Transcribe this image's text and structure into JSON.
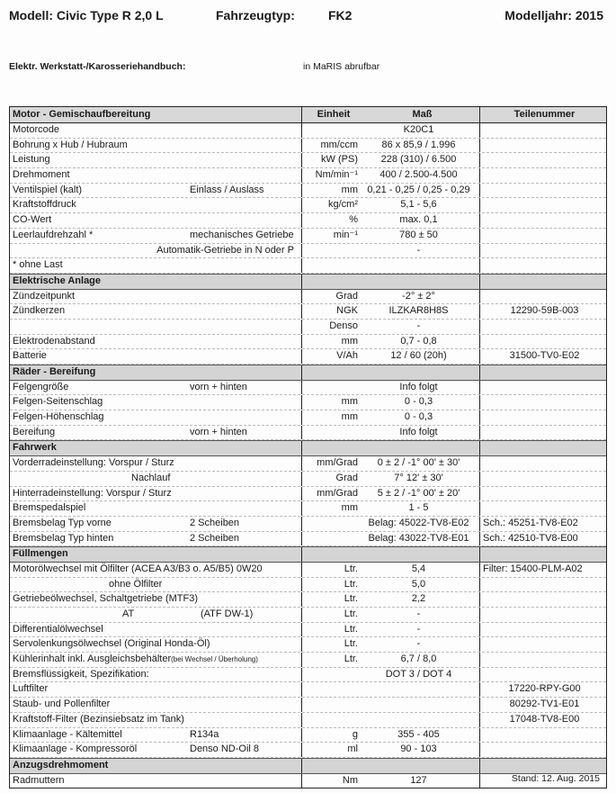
{
  "header": {
    "model": "Modell:  Civic Type R  2,0 L",
    "type_label": "Fahrzeugtyp:",
    "type_value": "FK2",
    "model_year": "Modelljahr: 2015"
  },
  "manual": {
    "label": "Elektr. Werkstatt-/Karosseriehandbuch:",
    "value": "in MaRIS abrufbar"
  },
  "table": {
    "columns": [
      "Motor - Gemischaufbereitung",
      "Einheit",
      "Maß",
      "Teilenummer"
    ],
    "sections": [
      {
        "title": "",
        "rows": [
          {
            "label": "Motorcode",
            "sub": "",
            "unit": "",
            "value": "K20C1",
            "part": ""
          },
          {
            "label": "Bohrung x Hub / Hubraum",
            "sub": "",
            "unit": "mm/ccm",
            "value": "86 x 85,9 / 1.996",
            "part": ""
          },
          {
            "label": "Leistung",
            "sub": "",
            "unit": "kW (PS)",
            "value": "228 (310) / 6.500",
            "part": ""
          },
          {
            "label": "Drehmoment",
            "sub": "",
            "unit": "Nm/min⁻¹",
            "value": "400 / 2.500-4.500",
            "part": ""
          },
          {
            "label": "Ventilspiel (kalt)",
            "sub": "Einlass / Auslass",
            "unit": "mm",
            "value": "0,21 - 0,25 / 0,25 - 0,29",
            "part": ""
          },
          {
            "label": "Kraftstoffdruck",
            "sub": "",
            "unit": "kg/cm²",
            "value": "5,1 - 5,6",
            "part": ""
          },
          {
            "label": "CO-Wert",
            "sub": "",
            "unit": "%",
            "value": "max. 0,1",
            "part": ""
          },
          {
            "label": "Leerlaufdrehzahl *",
            "sub": "mechanisches Getriebe",
            "unit": "min⁻¹",
            "value": "780 ± 50",
            "part": ""
          },
          {
            "label": "",
            "sub": "Automatik-Getriebe in N oder P",
            "unit": "",
            "value": "-",
            "part": ""
          },
          {
            "label": "* ohne Last",
            "sub": "",
            "unit": "",
            "value": "",
            "part": ""
          }
        ]
      },
      {
        "title": "Elektrische Anlage",
        "rows": [
          {
            "label": "Zündzeitpunkt",
            "sub": "",
            "unit": "Grad",
            "value": "-2° ± 2°",
            "part": ""
          },
          {
            "label": "Zündkerzen",
            "sub": "",
            "unit": "NGK",
            "value": "ILZKAR8H8S",
            "part": "12290-59B-003"
          },
          {
            "label": "",
            "sub": "",
            "unit": "Denso",
            "value": "-",
            "part": ""
          },
          {
            "label": "Elektrodenabstand",
            "sub": "",
            "unit": "mm",
            "value": "0,7 - 0,8",
            "part": ""
          },
          {
            "label": "Batterie",
            "sub": "",
            "unit": "V/Ah",
            "value": "12 / 60 (20h)",
            "part": "31500-TV0-E02"
          }
        ]
      },
      {
        "title": "Räder - Bereifung",
        "rows": [
          {
            "label": "Felgengröße",
            "sub": "vorn + hinten",
            "unit": "",
            "value": "Info folgt",
            "part": ""
          },
          {
            "label": "Felgen-Seitenschlag",
            "sub": "",
            "unit": "mm",
            "value": "0 - 0,3",
            "part": ""
          },
          {
            "label": "Felgen-Höhenschlag",
            "sub": "",
            "unit": "mm",
            "value": "0 - 0,3",
            "part": ""
          },
          {
            "label": "Bereifung",
            "sub": "vorn + hinten",
            "unit": "",
            "value": "Info folgt",
            "part": ""
          }
        ]
      },
      {
        "title": "Fahrwerk",
        "rows": [
          {
            "label": "Vorderradeinstellung: Vorspur / Sturz",
            "sub": "",
            "unit": "mm/Grad",
            "value": "0 ± 2 / -1° 00' ± 30'",
            "part": ""
          },
          {
            "label": "",
            "sub": "Nachlauf",
            "unit": "Grad",
            "value": "7° 12' ± 30'",
            "part": ""
          },
          {
            "label": "Hinterradeinstellung:  Vorspur / Sturz",
            "sub": "",
            "unit": "mm/Grad",
            "value": "5 ± 2 / -1° 00' ± 20'",
            "part": ""
          },
          {
            "label": "Bremspedalspiel",
            "sub": "",
            "unit": "mm",
            "value": "1 - 5",
            "part": ""
          },
          {
            "label": "Bremsbelag Typ vorne",
            "sub": "2 Scheiben",
            "unit": "",
            "value": "Belag: 45022-TV8-E02",
            "part": "Sch.: 45251-TV8-E02"
          },
          {
            "label": "Bremsbelag Typ hinten",
            "sub": "2 Scheiben",
            "unit": "",
            "value": "Belag: 43022-TV8-E01",
            "part": "Sch.: 42510-TV8-E00"
          }
        ]
      },
      {
        "title": "Füllmengen",
        "rows": [
          {
            "label": "Motorölwechsel mit Ölfilter  (ACEA A3/B3 o. A5/B5) 0W20",
            "sub": "",
            "unit": "Ltr.",
            "value": "5,4",
            "part": "Filter: 15400-PLM-A02"
          },
          {
            "label": "",
            "sub": "ohne Ölfilter",
            "unit": "Ltr.",
            "value": "5,0",
            "part": ""
          },
          {
            "label": "Getriebeölwechsel, Schaltgetriebe    (MTF3)",
            "sub": "",
            "unit": "Ltr.",
            "value": "2,2",
            "part": ""
          },
          {
            "label": "",
            "sub": "AT",
            "sub2": "(ATF DW-1)",
            "unit": "Ltr.",
            "value": "-",
            "part": ""
          },
          {
            "label": "Differentialölwechsel",
            "sub": "",
            "unit": "Ltr.",
            "value": "-",
            "part": ""
          },
          {
            "label": "Servolenkungsölwechsel (Original Honda-Öl)",
            "sub": "",
            "unit": "Ltr.",
            "value": "-",
            "part": ""
          },
          {
            "label": "Kühlerinhalt inkl. Ausgleichsbehälter",
            "small": "(bei Wechsel / Überholung)",
            "sub": "",
            "unit": "Ltr.",
            "value": "6,7 / 8,0",
            "part": ""
          },
          {
            "label": "Bremsflüssigkeit, Spezifikation:",
            "sub": "",
            "unit": "",
            "value": "DOT 3 / DOT 4",
            "part": ""
          },
          {
            "label": "Luftfilter",
            "sub": "",
            "unit": "",
            "value": "",
            "part": "17220-RPY-G00"
          },
          {
            "label": "Staub- und Pollenfilter",
            "sub": "",
            "unit": "",
            "value": "",
            "part": "80292-TV1-E01"
          },
          {
            "label": "Kraftstoff-Filter (Bezinsiebsatz im Tank)",
            "sub": "",
            "unit": "",
            "value": "",
            "part": "17048-TV8-E00"
          },
          {
            "label": "Klimaanlage - Kältemittel",
            "sub": "R134a",
            "unit": "g",
            "value": "355 - 405",
            "part": ""
          },
          {
            "label": "Klimaanlage - Kompressoröl",
            "sub": "Denso ND-Oil 8",
            "unit": "ml",
            "value": "90 - 103",
            "part": ""
          }
        ]
      },
      {
        "title": "Anzugsdrehmoment",
        "rows": [
          {
            "label": "Radmuttern",
            "sub": "",
            "unit": "Nm",
            "value": "127",
            "part": ""
          }
        ]
      }
    ]
  },
  "footer": {
    "stand": "Stand: 12. Aug. 2015"
  }
}
